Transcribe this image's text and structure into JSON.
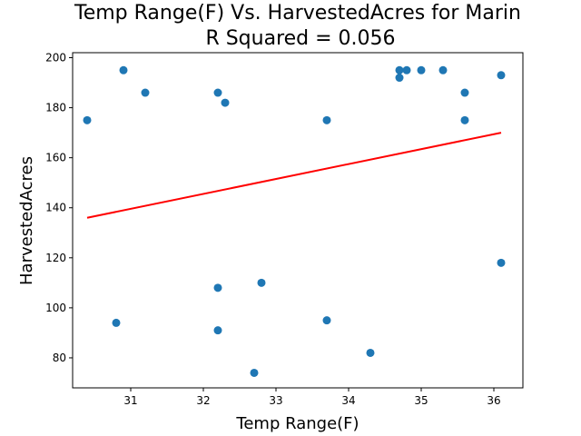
{
  "chart_data": {
    "type": "scatter",
    "title_line1": "Temp Range(F) Vs. HarvestedAcres for Marin",
    "title_line2": "R Squared =  0.056",
    "xlabel": "Temp Range(F)",
    "ylabel": "HarvestedAcres",
    "xlim": [
      30.2,
      36.4
    ],
    "ylim": [
      68,
      202
    ],
    "xticks": [
      31,
      32,
      33,
      34,
      35,
      36
    ],
    "yticks": [
      80,
      100,
      120,
      140,
      160,
      180,
      200
    ],
    "point_color": "#1f77b4",
    "trend_color": "#ff0000",
    "points": [
      {
        "x": 30.4,
        "y": 175
      },
      {
        "x": 30.8,
        "y": 94
      },
      {
        "x": 30.9,
        "y": 195
      },
      {
        "x": 31.2,
        "y": 186
      },
      {
        "x": 32.2,
        "y": 186
      },
      {
        "x": 32.2,
        "y": 108
      },
      {
        "x": 32.2,
        "y": 91
      },
      {
        "x": 32.3,
        "y": 182
      },
      {
        "x": 32.7,
        "y": 74
      },
      {
        "x": 32.8,
        "y": 110
      },
      {
        "x": 33.7,
        "y": 175
      },
      {
        "x": 33.7,
        "y": 95
      },
      {
        "x": 34.3,
        "y": 82
      },
      {
        "x": 34.7,
        "y": 195
      },
      {
        "x": 34.7,
        "y": 192
      },
      {
        "x": 34.8,
        "y": 195
      },
      {
        "x": 35.0,
        "y": 195
      },
      {
        "x": 35.3,
        "y": 195
      },
      {
        "x": 35.6,
        "y": 186
      },
      {
        "x": 35.6,
        "y": 175
      },
      {
        "x": 36.1,
        "y": 193
      },
      {
        "x": 36.1,
        "y": 118
      }
    ],
    "trend_line": {
      "x": [
        30.4,
        36.1
      ],
      "y": [
        136,
        170
      ]
    }
  }
}
